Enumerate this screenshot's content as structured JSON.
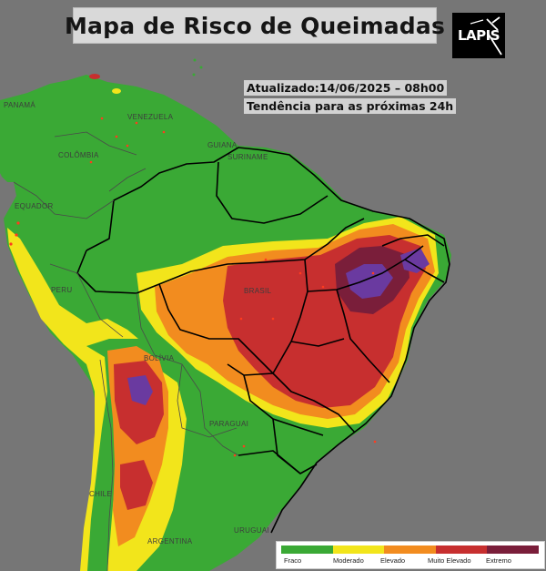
{
  "title": "Mapa de Risco de Queimadas",
  "logo_text": "LAPIS",
  "updated": "Atualizado:14/06/2025 – 08h00",
  "trend": "Tendência para as próximas 24h",
  "countries": {
    "panama": "PANAMÁ",
    "venezuela": "VENEZUELA",
    "guiana": "GUIANA",
    "suriname": "SURINAME",
    "colombia": "COLÔMBIA",
    "equador": "EQUADOR",
    "peru": "PERU",
    "brasil": "BRASIL",
    "bolivia": "BOLÍVIA",
    "paraguai": "PARAGUAI",
    "chile": "CHILE",
    "argentina": "ARGENTINA",
    "uruguai": "URUGUAI"
  },
  "legend": {
    "items": [
      {
        "label": "Fraco",
        "color": "#3aa935"
      },
      {
        "label": "Moderado",
        "color": "#f2e51b"
      },
      {
        "label": "Elevado",
        "color": "#f28c1f"
      },
      {
        "label": "Muito Elevado",
        "color": "#c72f2f"
      },
      {
        "label": "Extremo",
        "color": "#7a1e3a"
      }
    ]
  },
  "colors": {
    "ocean": "#767676",
    "fraco": "#3aa935",
    "moderado": "#f2e51b",
    "elevado": "#f28c1f",
    "muito_elevado": "#c72f2f",
    "extremo": "#7a1e3a",
    "critico": "#6a3aa0"
  }
}
